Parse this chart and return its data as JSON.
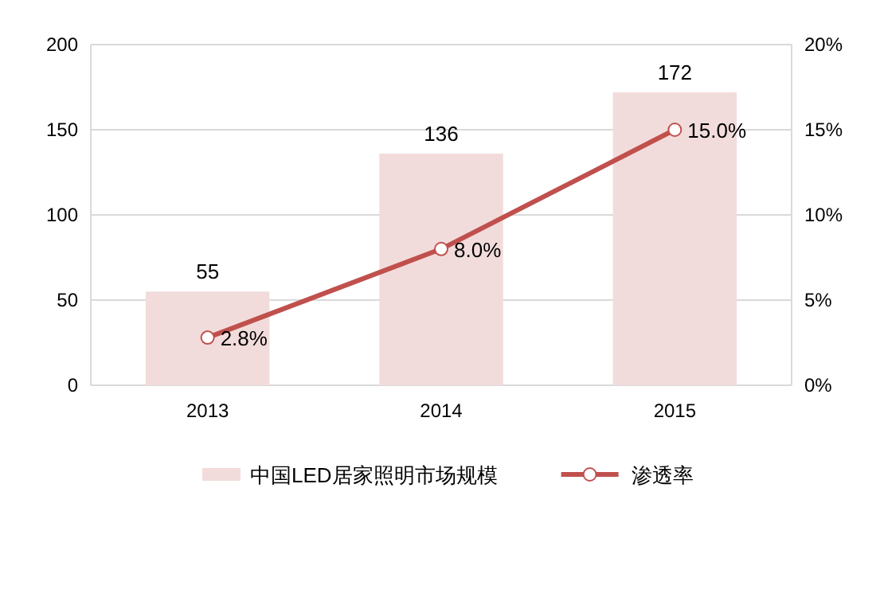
{
  "chart_data": {
    "type": "bar",
    "categories": [
      "2013",
      "2014",
      "2015"
    ],
    "series": [
      {
        "name": "中国LED居家照明市场规模",
        "color": "#f2dcdb",
        "values": [
          55,
          136,
          172
        ],
        "value_labels": [
          "55",
          "136",
          "172"
        ]
      },
      {
        "name": "渗透率",
        "type": "line",
        "axis": "y2",
        "color": "#c0504d",
        "values": [
          2.8,
          8.0,
          15.0
        ],
        "value_labels": [
          "2.8%",
          "8.0%",
          "15.0%"
        ]
      }
    ],
    "ylim": [
      0,
      200
    ],
    "yticks": [
      0,
      50,
      100,
      150,
      200
    ],
    "y2lim": [
      0,
      20
    ],
    "y2ticks": [
      {
        "value": 0,
        "label": "0%"
      },
      {
        "value": 5,
        "label": "5%"
      },
      {
        "value": 10,
        "label": "10%"
      },
      {
        "value": 15,
        "label": "15%"
      },
      {
        "value": 20,
        "label": "20%"
      }
    ],
    "grid": "y",
    "legend": "bottom",
    "marker": "circle",
    "line_style": "solid"
  }
}
